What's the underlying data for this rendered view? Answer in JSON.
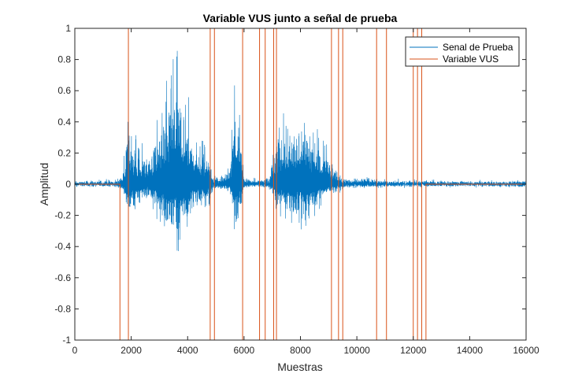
{
  "chart_data": {
    "type": "line",
    "title": "Variable VUS junto a señal de prueba",
    "xlabel": "Muestras",
    "ylabel": "Amplitud",
    "xlim": [
      0,
      16000
    ],
    "ylim": [
      -1,
      1
    ],
    "xticks": [
      "0",
      "2000",
      "4000",
      "6000",
      "8000",
      "10000",
      "12000",
      "14000",
      "16000"
    ],
    "xtick_values": [
      0,
      2000,
      4000,
      6000,
      8000,
      10000,
      12000,
      14000,
      16000
    ],
    "yticks": [
      "-1",
      "-0.8",
      "-0.6",
      "-0.4",
      "-0.2",
      "0",
      "0.2",
      "0.4",
      "0.6",
      "0.8",
      "1"
    ],
    "ytick_values": [
      -1,
      -0.8,
      -0.6,
      -0.4,
      -0.2,
      0,
      0.2,
      0.4,
      0.6,
      0.8,
      1
    ],
    "grid": false,
    "legend_position": "top-right",
    "series": [
      {
        "name": "Senal de Prueba",
        "color": "#0072BD",
        "style": "dense-oscillation",
        "baseline_noise": 0.02,
        "envelope": [
          [
            0,
            0.02
          ],
          [
            1500,
            0.03
          ],
          [
            1700,
            0.1
          ],
          [
            1900,
            0.55
          ],
          [
            2200,
            0.3
          ],
          [
            2600,
            0.25
          ],
          [
            3000,
            0.5
          ],
          [
            3300,
            0.75
          ],
          [
            3600,
            0.9
          ],
          [
            3900,
            0.7
          ],
          [
            4300,
            0.4
          ],
          [
            4800,
            0.25
          ],
          [
            4900,
            0.08
          ],
          [
            5300,
            0.06
          ],
          [
            5500,
            0.15
          ],
          [
            5600,
            0.45
          ],
          [
            5700,
            0.75
          ],
          [
            5800,
            0.7
          ],
          [
            5900,
            0.4
          ],
          [
            6000,
            0.05
          ],
          [
            6500,
            0.03
          ],
          [
            6900,
            0.06
          ],
          [
            7100,
            0.3
          ],
          [
            7300,
            0.55
          ],
          [
            7500,
            0.5
          ],
          [
            7800,
            0.55
          ],
          [
            8200,
            0.55
          ],
          [
            8500,
            0.45
          ],
          [
            8800,
            0.3
          ],
          [
            9200,
            0.15
          ],
          [
            9500,
            0.05
          ],
          [
            10700,
            0.04
          ],
          [
            11000,
            0.03
          ],
          [
            15000,
            0.02
          ],
          [
            16000,
            0.03
          ]
        ]
      },
      {
        "name": "Variable VUS",
        "color": "#D95319",
        "style": "step",
        "x": [
          0,
          1600,
          1600,
          1900,
          1900,
          4800,
          4800,
          4950,
          4950,
          5950,
          5950,
          6550,
          6550,
          6750,
          6750,
          7050,
          7050,
          7150,
          7150,
          9100,
          9100,
          9350,
          9350,
          9500,
          9500,
          10700,
          10700,
          11050,
          11050,
          12000,
          12000,
          12150,
          12150,
          12300,
          12300,
          12450,
          12450,
          16000
        ],
        "y": [
          0,
          0,
          -1,
          -1,
          1,
          1,
          -1,
          -1,
          1,
          1,
          -1,
          -1,
          1,
          1,
          -1,
          -1,
          1,
          1,
          -1,
          -1,
          1,
          1,
          -1,
          -1,
          1,
          1,
          -1,
          -1,
          1,
          1,
          -1,
          -1,
          1,
          1,
          -1,
          -1,
          0,
          0
        ]
      }
    ]
  }
}
